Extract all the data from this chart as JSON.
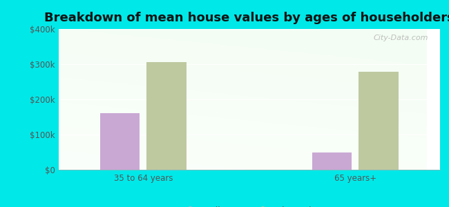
{
  "title": "Breakdown of mean house values by ages of householders",
  "categories": [
    "35 to 64 years",
    "65 years+"
  ],
  "series": {
    "Radisson": [
      160000,
      50000
    ],
    "Wisconsin": [
      305000,
      278000
    ]
  },
  "bar_colors": {
    "Radisson": "#c9a8d4",
    "Wisconsin": "#bec9a0"
  },
  "ylim": [
    0,
    400000
  ],
  "yticks": [
    0,
    100000,
    200000,
    300000,
    400000
  ],
  "ytick_labels": [
    "$0",
    "$100k",
    "$200k",
    "$300k",
    "$400k"
  ],
  "background_color": "#00e8e8",
  "title_fontsize": 13,
  "bar_width": 0.28,
  "watermark": "City-Data.com"
}
